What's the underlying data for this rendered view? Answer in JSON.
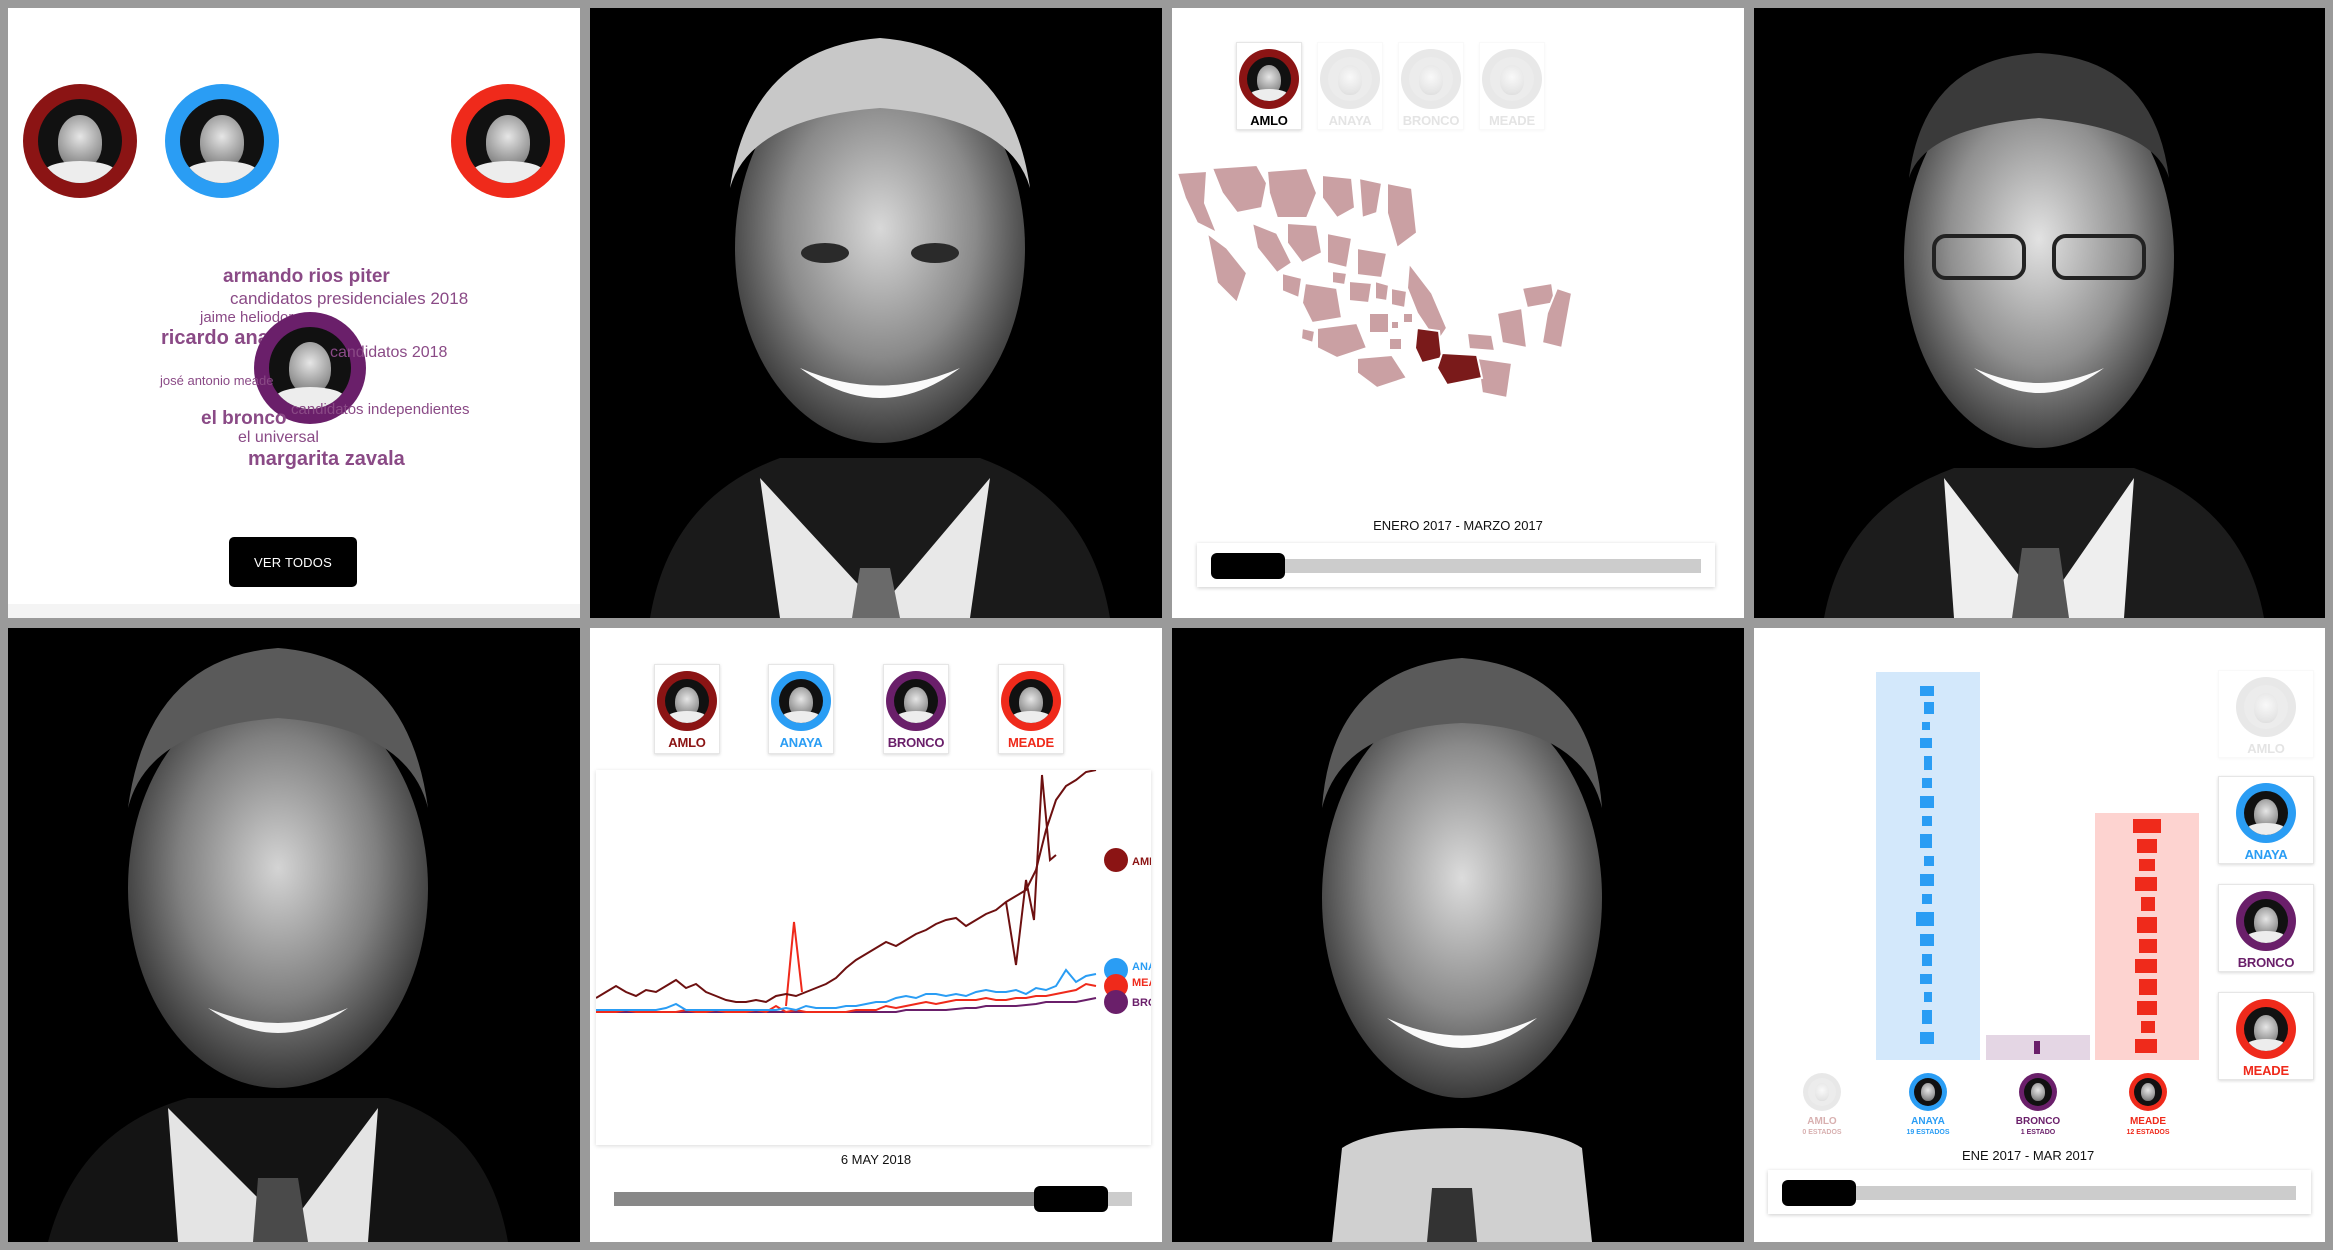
{
  "colors": {
    "amlo": "#8b1414",
    "anaya": "#2a9df4",
    "bronco": "#6a1f6a",
    "meade": "#ef2a1b",
    "word": "#8a4a86",
    "map_fill": "#caa0a3",
    "map_highlight": "#7a1a1a"
  },
  "wordcloud_panel": {
    "words": [
      "armando rios piter",
      "candidatos presidenciales 2018",
      "jaime heliodoro",
      "ricardo anaya",
      "candidatos 2018",
      "josé antonio meade",
      "candidatos independientes",
      "el bronco",
      "el universal",
      "margarita zavala"
    ],
    "button_label": "VER TODOS"
  },
  "map_panel": {
    "candidates": [
      "AMLO",
      "ANAYA",
      "BRONCO",
      "MEADE"
    ],
    "active": "AMLO",
    "period_label": "ENERO 2017 - MARZO 2017"
  },
  "line_panel": {
    "candidates": [
      "AMLO",
      "ANAYA",
      "BRONCO",
      "MEADE"
    ],
    "date_label": "6 MAY 2018",
    "end_labels": [
      "AMLO",
      "ANAYA",
      "MEADE",
      "BRONCO"
    ]
  },
  "bar_panel": {
    "side_candidates": [
      "AMLO",
      "ANAYA",
      "BRONCO",
      "MEADE"
    ],
    "bottom_labels": [
      {
        "name": "AMLO",
        "sub": "0 ESTADOS"
      },
      {
        "name": "ANAYA",
        "sub": "19 ESTADOS"
      },
      {
        "name": "BRONCO",
        "sub": "1 ESTADO"
      },
      {
        "name": "MEADE",
        "sub": "12 ESTADOS"
      }
    ],
    "period_label": "ENE 2017 - MAR 2017"
  }
}
